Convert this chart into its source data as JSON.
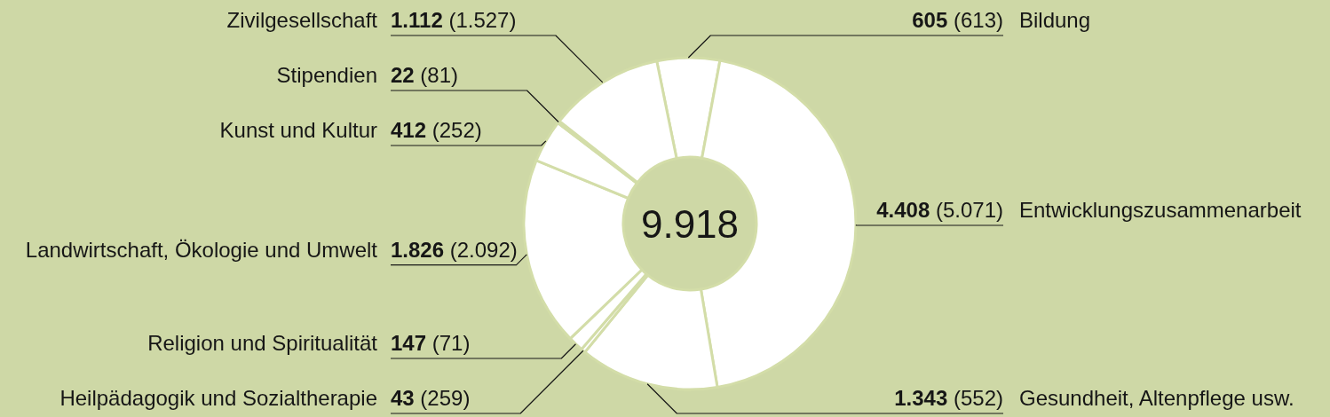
{
  "chart_data": {
    "type": "donut",
    "categories": [
      "Bildung",
      "Entwicklungszusammenarbeit",
      "Gesundheit, Altenpflege usw.",
      "Heilpädagogik und Sozialtherapie",
      "Religion und Spiritualität",
      "Landwirtschaft, Ökologie und Umwelt",
      "Kunst und Kultur",
      "Stipendien",
      "Zivilgesellschaft"
    ],
    "values": [
      605,
      4408,
      1343,
      43,
      147,
      1826,
      412,
      22,
      1112
    ],
    "value_labels": [
      "605 (613)",
      "4.408 (5.071)",
      "1.343 (552)",
      "43 (259)",
      "147 (71)",
      "1.826 (2.092)",
      "412 (252)",
      "22 (81)",
      "1.112 (1.527)"
    ],
    "colors": [
      "#ffffff",
      "#ffffff",
      "#ffffff",
      "#ffffff",
      "#ffffff",
      "#ffffff",
      "#ffffff",
      "#ffffff",
      "#ffffff"
    ],
    "annotations": [
      "9.918"
    ]
  }
}
